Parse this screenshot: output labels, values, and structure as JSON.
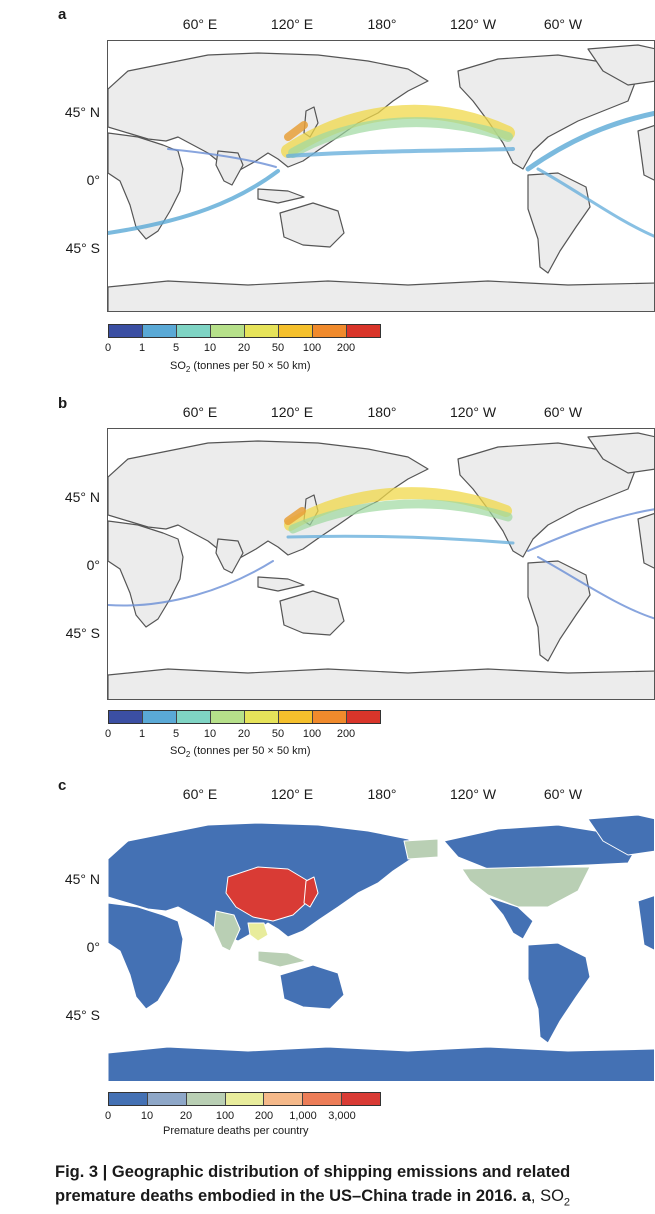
{
  "panels": [
    {
      "label": "a",
      "lon_ticks": [
        "60° E",
        "120° E",
        "180°",
        "120° W",
        "60° W"
      ],
      "lat_ticks": [
        "45° N",
        "0°",
        "45° S"
      ],
      "legend": {
        "title_prefix": "SO",
        "title_sub": "2",
        "title_suffix": " (tonnes per 50 × 50 km)",
        "ticks": [
          "0",
          "1",
          "5",
          "10",
          "20",
          "50",
          "100",
          "200"
        ],
        "colors": [
          "#3b4fa3",
          "#5aa9d6",
          "#7fd4c4",
          "#b6e08a",
          "#e6e35a",
          "#f5c02c",
          "#f08a2c",
          "#d9352a"
        ]
      }
    },
    {
      "label": "b",
      "lon_ticks": [
        "60° E",
        "120° E",
        "180°",
        "120° W",
        "60° W"
      ],
      "lat_ticks": [
        "45° N",
        "0°",
        "45° S"
      ],
      "legend": {
        "title_prefix": "SO",
        "title_sub": "2",
        "title_suffix": " (tonnes per 50 × 50 km)",
        "ticks": [
          "0",
          "1",
          "5",
          "10",
          "20",
          "50",
          "100",
          "200"
        ],
        "colors": [
          "#3b4fa3",
          "#5aa9d6",
          "#7fd4c4",
          "#b6e08a",
          "#e6e35a",
          "#f5c02c",
          "#f08a2c",
          "#d9352a"
        ]
      }
    },
    {
      "label": "c",
      "lon_ticks": [
        "60° E",
        "120° E",
        "180°",
        "120° W",
        "60° W"
      ],
      "lat_ticks": [
        "45° N",
        "0°",
        "45° S"
      ],
      "legend": {
        "title_prefix": "Premature deaths per country",
        "title_sub": "",
        "title_suffix": "",
        "ticks": [
          "0",
          "10",
          "20",
          "100",
          "200",
          "1,000",
          "3,000"
        ],
        "colors": [
          "#4471b4",
          "#8ea7c8",
          "#b9cfb4",
          "#e8ec9c",
          "#f5b98a",
          "#ec7d58",
          "#d93b35"
        ]
      }
    }
  ],
  "caption": {
    "prefix": "Fig. 3 | ",
    "title": "Geographic distribution of shipping emissions and related premature deaths embodied in the US–China trade in 2016. ",
    "panel_ref": "a",
    "rest": ", SO",
    "sub": "2"
  }
}
